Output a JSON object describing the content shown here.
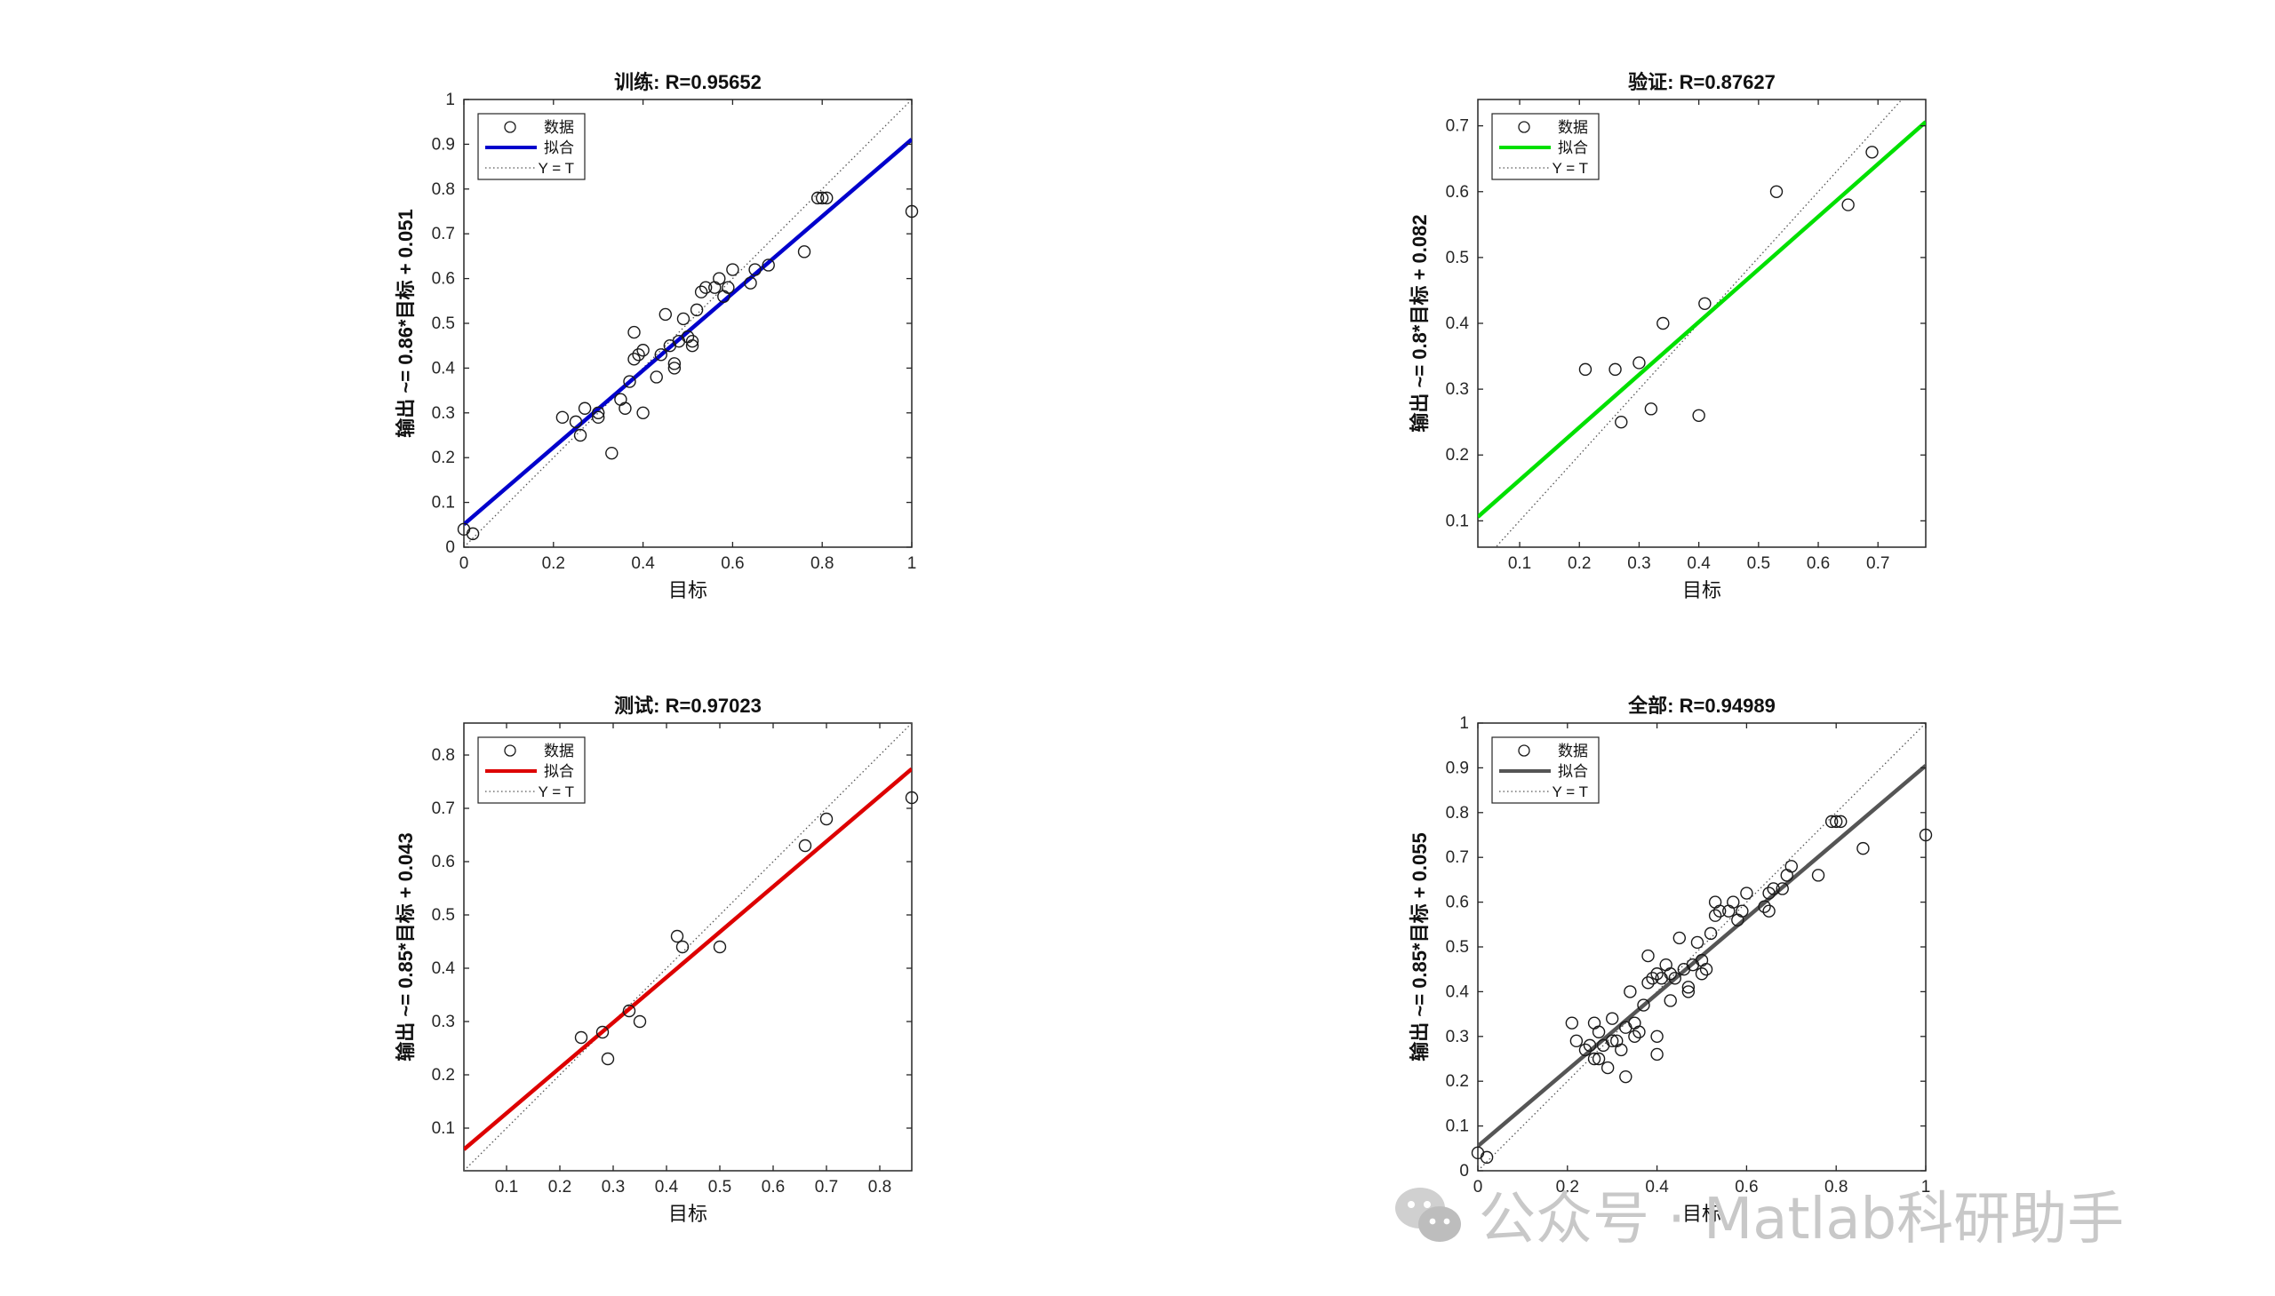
{
  "watermark": {
    "text": "公众号 · Matlab科研助手",
    "icon": "wechat-icon"
  },
  "chart_data": [
    {
      "type": "scatter",
      "title": "训练: R=0.95652",
      "xlabel": "目标",
      "ylabel": "输出 ~= 0.86*目标 + 0.051",
      "xlim": [
        0,
        1
      ],
      "ylim": [
        0,
        1
      ],
      "xticks": [
        0,
        0.2,
        0.4,
        0.6,
        0.8,
        1
      ],
      "yticks": [
        0,
        0.1,
        0.2,
        0.3,
        0.4,
        0.5,
        0.6,
        0.7,
        0.8,
        0.9,
        1
      ],
      "fit": {
        "slope": 0.86,
        "intercept": 0.051,
        "color": "#0000cc"
      },
      "legend": {
        "position": "top-left",
        "entries": [
          "数据",
          "拟合",
          "Y = T"
        ]
      },
      "grid": false,
      "points": [
        {
          "x": 0.0,
          "y": 0.04
        },
        {
          "x": 0.02,
          "y": 0.03
        },
        {
          "x": 0.22,
          "y": 0.29
        },
        {
          "x": 0.25,
          "y": 0.28
        },
        {
          "x": 0.26,
          "y": 0.25
        },
        {
          "x": 0.27,
          "y": 0.31
        },
        {
          "x": 0.3,
          "y": 0.29
        },
        {
          "x": 0.3,
          "y": 0.3
        },
        {
          "x": 0.33,
          "y": 0.21
        },
        {
          "x": 0.35,
          "y": 0.33
        },
        {
          "x": 0.36,
          "y": 0.31
        },
        {
          "x": 0.37,
          "y": 0.37
        },
        {
          "x": 0.38,
          "y": 0.42
        },
        {
          "x": 0.38,
          "y": 0.48
        },
        {
          "x": 0.39,
          "y": 0.43
        },
        {
          "x": 0.4,
          "y": 0.44
        },
        {
          "x": 0.4,
          "y": 0.3
        },
        {
          "x": 0.43,
          "y": 0.38
        },
        {
          "x": 0.44,
          "y": 0.43
        },
        {
          "x": 0.45,
          "y": 0.52
        },
        {
          "x": 0.46,
          "y": 0.45
        },
        {
          "x": 0.47,
          "y": 0.4
        },
        {
          "x": 0.47,
          "y": 0.41
        },
        {
          "x": 0.48,
          "y": 0.46
        },
        {
          "x": 0.49,
          "y": 0.51
        },
        {
          "x": 0.5,
          "y": 0.47
        },
        {
          "x": 0.51,
          "y": 0.45
        },
        {
          "x": 0.51,
          "y": 0.46
        },
        {
          "x": 0.52,
          "y": 0.53
        },
        {
          "x": 0.53,
          "y": 0.57
        },
        {
          "x": 0.54,
          "y": 0.58
        },
        {
          "x": 0.56,
          "y": 0.58
        },
        {
          "x": 0.57,
          "y": 0.6
        },
        {
          "x": 0.58,
          "y": 0.56
        },
        {
          "x": 0.59,
          "y": 0.58
        },
        {
          "x": 0.6,
          "y": 0.62
        },
        {
          "x": 0.64,
          "y": 0.59
        },
        {
          "x": 0.65,
          "y": 0.62
        },
        {
          "x": 0.68,
          "y": 0.63
        },
        {
          "x": 0.76,
          "y": 0.66
        },
        {
          "x": 0.79,
          "y": 0.78
        },
        {
          "x": 0.8,
          "y": 0.78
        },
        {
          "x": 0.81,
          "y": 0.78
        },
        {
          "x": 1.0,
          "y": 0.75
        }
      ]
    },
    {
      "type": "scatter",
      "title": "验证: R=0.87627",
      "xlabel": "目标",
      "ylabel": "输出 ~= 0.8*目标 + 0.082",
      "xlim": [
        0.03,
        0.78
      ],
      "ylim": [
        0.06,
        0.74
      ],
      "xticks": [
        0.1,
        0.2,
        0.3,
        0.4,
        0.5,
        0.6,
        0.7
      ],
      "yticks": [
        0.1,
        0.2,
        0.3,
        0.4,
        0.5,
        0.6,
        0.7
      ],
      "fit": {
        "slope": 0.8,
        "intercept": 0.082,
        "color": "#00e000"
      },
      "legend": {
        "position": "top-left",
        "entries": [
          "数据",
          "拟合",
          "Y = T"
        ]
      },
      "grid": false,
      "points": [
        {
          "x": 0.21,
          "y": 0.33
        },
        {
          "x": 0.26,
          "y": 0.33
        },
        {
          "x": 0.27,
          "y": 0.25
        },
        {
          "x": 0.3,
          "y": 0.34
        },
        {
          "x": 0.32,
          "y": 0.27
        },
        {
          "x": 0.34,
          "y": 0.4
        },
        {
          "x": 0.4,
          "y": 0.26
        },
        {
          "x": 0.41,
          "y": 0.43
        },
        {
          "x": 0.53,
          "y": 0.6
        },
        {
          "x": 0.65,
          "y": 0.58
        },
        {
          "x": 0.69,
          "y": 0.66
        }
      ]
    },
    {
      "type": "scatter",
      "title": "测试: R=0.97023",
      "xlabel": "目标",
      "ylabel": "输出 ~= 0.85*目标 + 0.043",
      "xlim": [
        0.02,
        0.86
      ],
      "ylim": [
        0.02,
        0.86
      ],
      "xticks": [
        0.1,
        0.2,
        0.3,
        0.4,
        0.5,
        0.6,
        0.7,
        0.8
      ],
      "yticks": [
        0.1,
        0.2,
        0.3,
        0.4,
        0.5,
        0.6,
        0.7,
        0.8
      ],
      "fit": {
        "slope": 0.85,
        "intercept": 0.043,
        "color": "#dd0000"
      },
      "legend": {
        "position": "top-left",
        "entries": [
          "数据",
          "拟合",
          "Y = T"
        ]
      },
      "grid": false,
      "points": [
        {
          "x": 0.24,
          "y": 0.27
        },
        {
          "x": 0.28,
          "y": 0.28
        },
        {
          "x": 0.29,
          "y": 0.23
        },
        {
          "x": 0.33,
          "y": 0.32
        },
        {
          "x": 0.35,
          "y": 0.3
        },
        {
          "x": 0.42,
          "y": 0.46
        },
        {
          "x": 0.43,
          "y": 0.44
        },
        {
          "x": 0.5,
          "y": 0.44
        },
        {
          "x": 0.66,
          "y": 0.63
        },
        {
          "x": 0.7,
          "y": 0.68
        },
        {
          "x": 0.86,
          "y": 0.72
        }
      ]
    },
    {
      "type": "scatter",
      "title": "全部: R=0.94989",
      "xlabel": "目标",
      "ylabel": "输出 ~= 0.85*目标 + 0.055",
      "xlim": [
        0,
        1
      ],
      "ylim": [
        0,
        1
      ],
      "xticks": [
        0,
        0.2,
        0.4,
        0.6,
        0.8,
        1
      ],
      "yticks": [
        0,
        0.1,
        0.2,
        0.3,
        0.4,
        0.5,
        0.6,
        0.7,
        0.8,
        0.9,
        1
      ],
      "fit": {
        "slope": 0.85,
        "intercept": 0.055,
        "color": "#555555"
      },
      "legend": {
        "position": "top-left",
        "entries": [
          "数据",
          "拟合",
          "Y = T"
        ]
      },
      "grid": false,
      "points": [
        {
          "x": 0.0,
          "y": 0.04
        },
        {
          "x": 0.02,
          "y": 0.03
        },
        {
          "x": 0.21,
          "y": 0.33
        },
        {
          "x": 0.22,
          "y": 0.29
        },
        {
          "x": 0.24,
          "y": 0.27
        },
        {
          "x": 0.25,
          "y": 0.28
        },
        {
          "x": 0.26,
          "y": 0.33
        },
        {
          "x": 0.26,
          "y": 0.25
        },
        {
          "x": 0.27,
          "y": 0.31
        },
        {
          "x": 0.27,
          "y": 0.25
        },
        {
          "x": 0.28,
          "y": 0.28
        },
        {
          "x": 0.29,
          "y": 0.23
        },
        {
          "x": 0.3,
          "y": 0.29
        },
        {
          "x": 0.3,
          "y": 0.34
        },
        {
          "x": 0.31,
          "y": 0.29
        },
        {
          "x": 0.32,
          "y": 0.27
        },
        {
          "x": 0.33,
          "y": 0.21
        },
        {
          "x": 0.33,
          "y": 0.32
        },
        {
          "x": 0.34,
          "y": 0.4
        },
        {
          "x": 0.35,
          "y": 0.33
        },
        {
          "x": 0.35,
          "y": 0.3
        },
        {
          "x": 0.36,
          "y": 0.31
        },
        {
          "x": 0.37,
          "y": 0.37
        },
        {
          "x": 0.38,
          "y": 0.42
        },
        {
          "x": 0.38,
          "y": 0.48
        },
        {
          "x": 0.39,
          "y": 0.43
        },
        {
          "x": 0.4,
          "y": 0.44
        },
        {
          "x": 0.4,
          "y": 0.3
        },
        {
          "x": 0.4,
          "y": 0.26
        },
        {
          "x": 0.41,
          "y": 0.43
        },
        {
          "x": 0.42,
          "y": 0.46
        },
        {
          "x": 0.43,
          "y": 0.38
        },
        {
          "x": 0.43,
          "y": 0.44
        },
        {
          "x": 0.44,
          "y": 0.43
        },
        {
          "x": 0.45,
          "y": 0.52
        },
        {
          "x": 0.46,
          "y": 0.45
        },
        {
          "x": 0.47,
          "y": 0.4
        },
        {
          "x": 0.47,
          "y": 0.41
        },
        {
          "x": 0.48,
          "y": 0.46
        },
        {
          "x": 0.49,
          "y": 0.51
        },
        {
          "x": 0.5,
          "y": 0.47
        },
        {
          "x": 0.5,
          "y": 0.44
        },
        {
          "x": 0.51,
          "y": 0.45
        },
        {
          "x": 0.52,
          "y": 0.53
        },
        {
          "x": 0.53,
          "y": 0.6
        },
        {
          "x": 0.53,
          "y": 0.57
        },
        {
          "x": 0.54,
          "y": 0.58
        },
        {
          "x": 0.56,
          "y": 0.58
        },
        {
          "x": 0.57,
          "y": 0.6
        },
        {
          "x": 0.58,
          "y": 0.56
        },
        {
          "x": 0.59,
          "y": 0.58
        },
        {
          "x": 0.6,
          "y": 0.62
        },
        {
          "x": 0.64,
          "y": 0.59
        },
        {
          "x": 0.65,
          "y": 0.62
        },
        {
          "x": 0.65,
          "y": 0.58
        },
        {
          "x": 0.66,
          "y": 0.63
        },
        {
          "x": 0.68,
          "y": 0.63
        },
        {
          "x": 0.69,
          "y": 0.66
        },
        {
          "x": 0.7,
          "y": 0.68
        },
        {
          "x": 0.76,
          "y": 0.66
        },
        {
          "x": 0.79,
          "y": 0.78
        },
        {
          "x": 0.8,
          "y": 0.78
        },
        {
          "x": 0.81,
          "y": 0.78
        },
        {
          "x": 0.86,
          "y": 0.72
        },
        {
          "x": 1.0,
          "y": 0.75
        }
      ]
    }
  ]
}
